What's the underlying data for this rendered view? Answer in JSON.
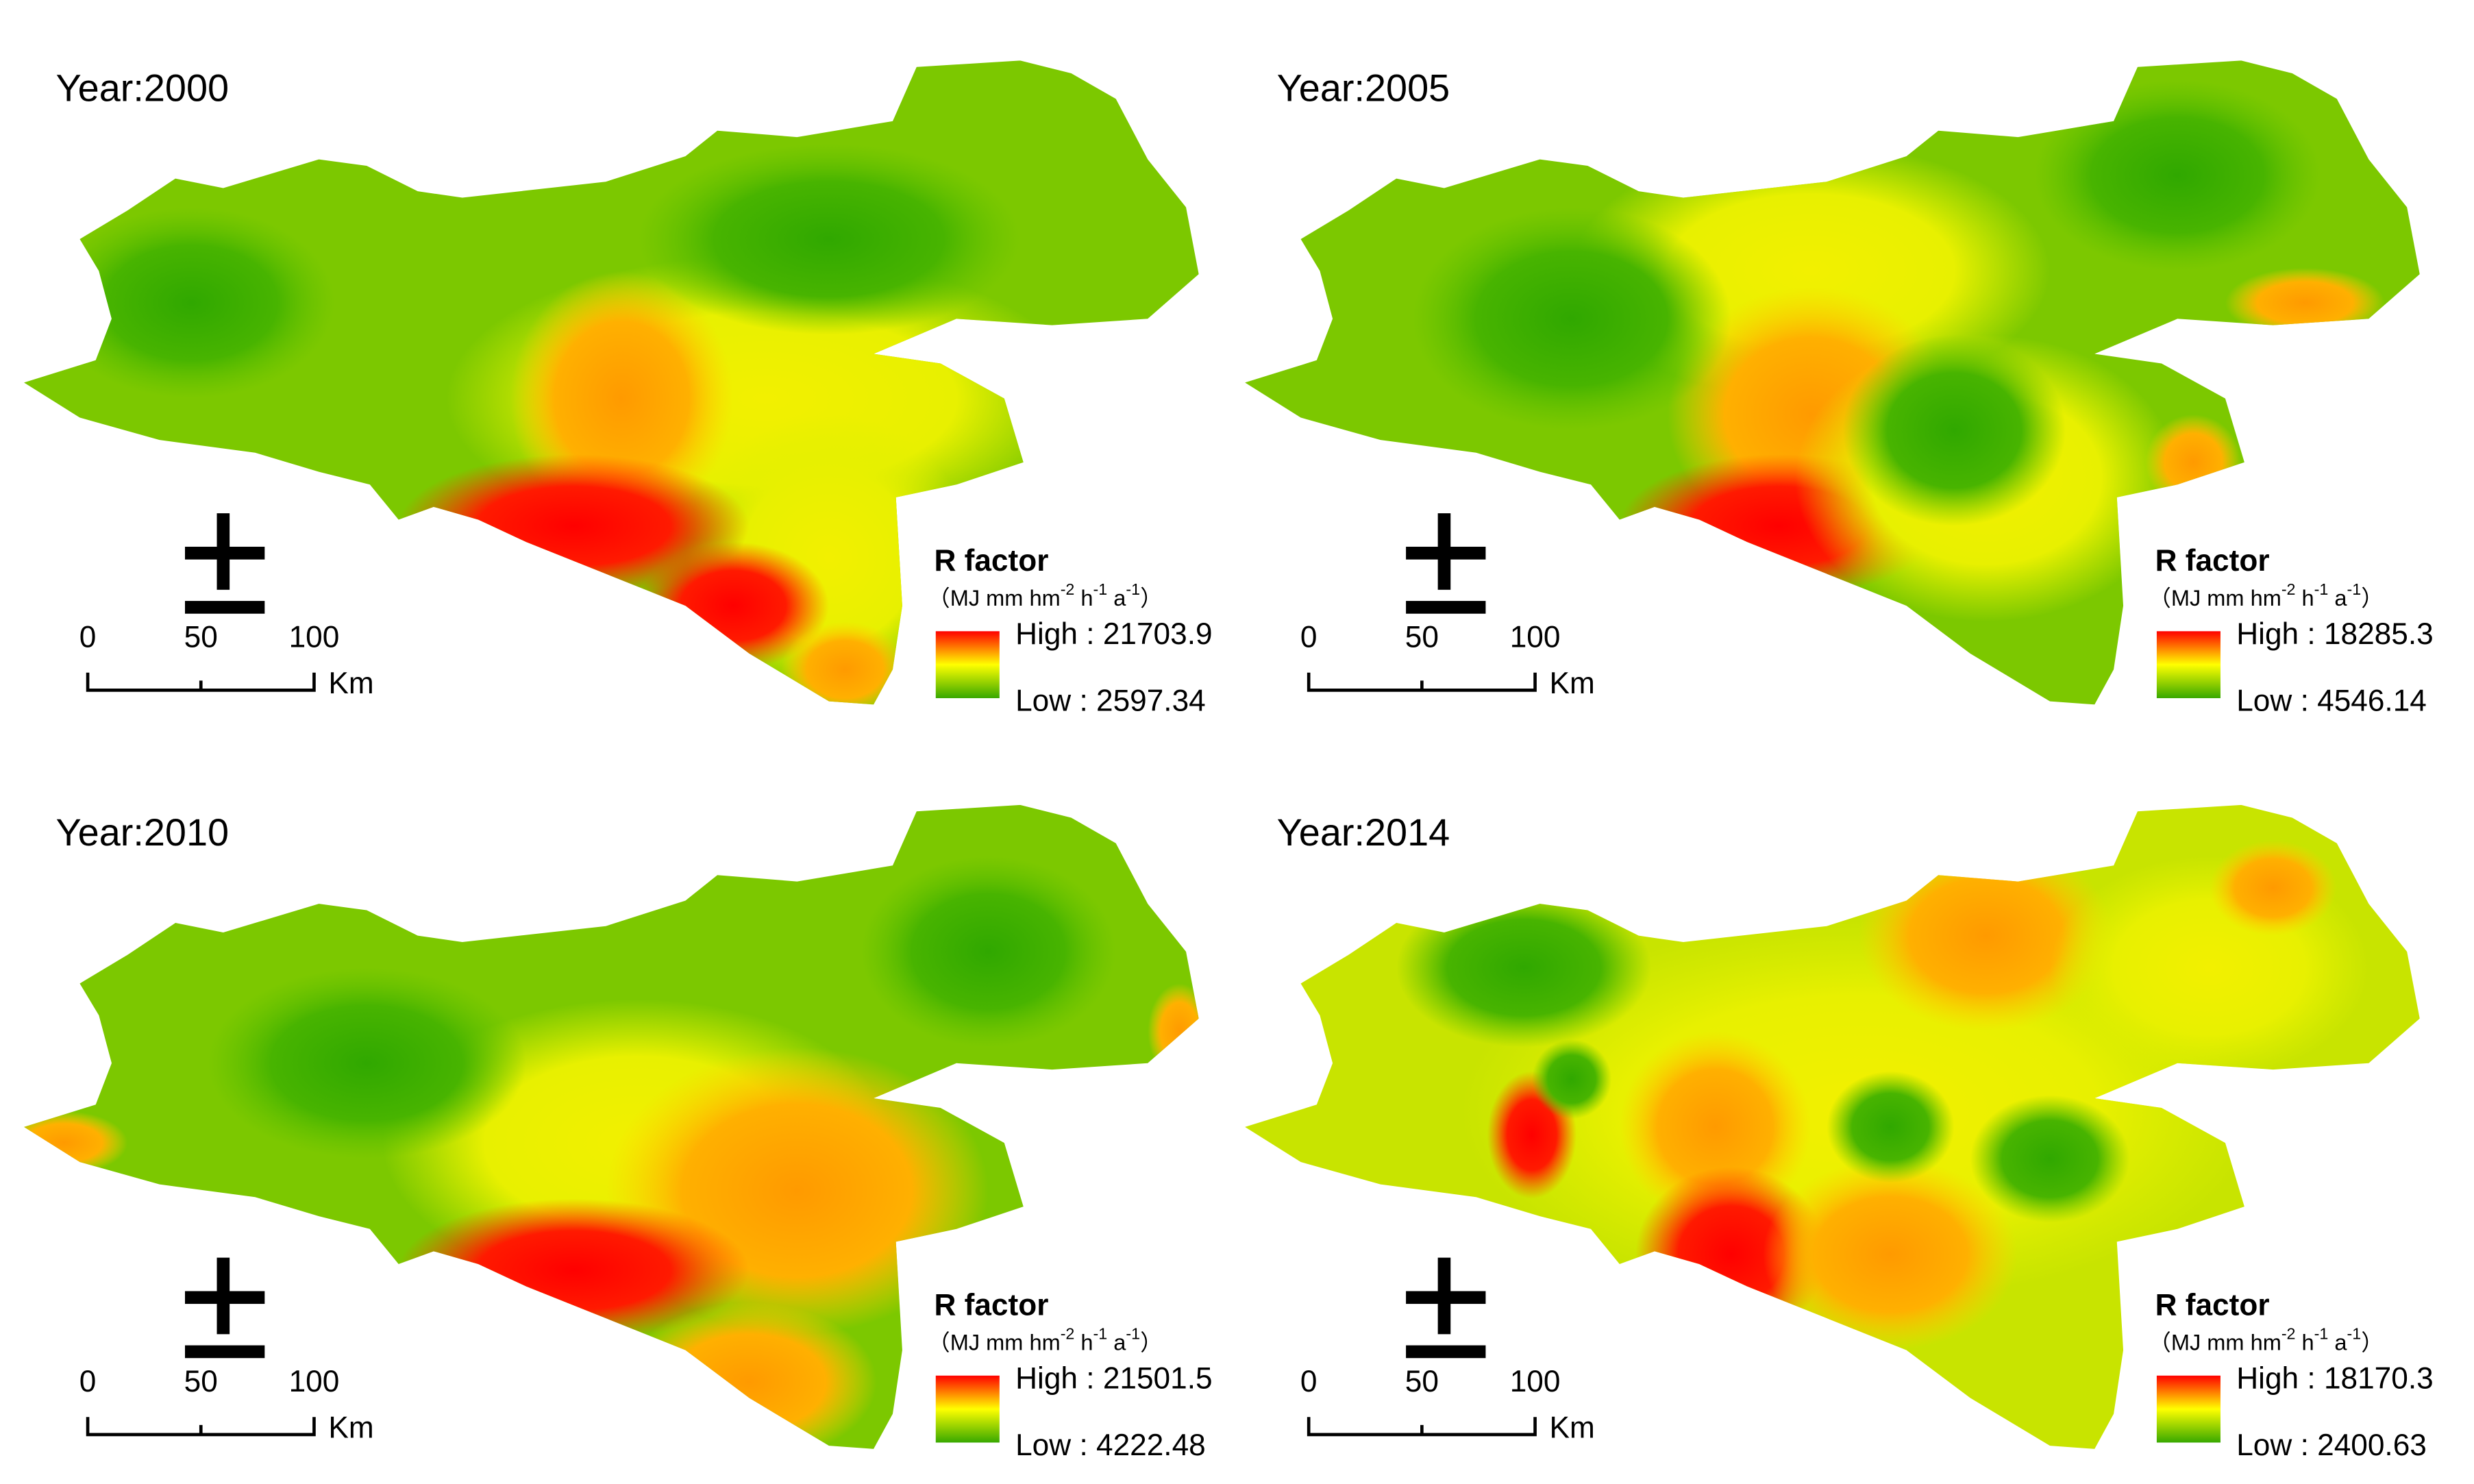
{
  "panels": [
    {
      "title": "Year:2000",
      "legend": {
        "title": "R factor",
        "unit": [
          "（MJ mm hm",
          "-2",
          " h",
          "-1",
          " a",
          "-1",
          "）"
        ],
        "high": "High : 21703.9",
        "low": "Low : 2597.34"
      },
      "scale": {
        "ticks": [
          "0",
          "50",
          "100"
        ],
        "unit": "Km"
      }
    },
    {
      "title": "Year:2005",
      "legend": {
        "title": "R factor",
        "unit": [
          "（MJ mm hm",
          "-2",
          " h",
          "-1",
          " a",
          "-1",
          "）"
        ],
        "high": "High : 18285.3",
        "low": "Low : 4546.14"
      },
      "scale": {
        "ticks": [
          "0",
          "50",
          "100"
        ],
        "unit": "Km"
      }
    },
    {
      "title": "Year:2010",
      "legend": {
        "title": "R factor",
        "unit": [
          "（MJ mm hm",
          "-2",
          " h",
          "-1",
          " a",
          "-1",
          "）"
        ],
        "high": "High : 21501.5",
        "low": "Low : 4222.48"
      },
      "scale": {
        "ticks": [
          "0",
          "50",
          "100"
        ],
        "unit": "Km"
      }
    },
    {
      "title": "Year:2014",
      "legend": {
        "title": "R factor",
        "unit": [
          "（MJ mm hm",
          "-2",
          " h",
          "-1",
          " a",
          "-1",
          "）"
        ],
        "high": "High : 18170.3",
        "low": "Low : 2400.63"
      },
      "scale": {
        "ticks": [
          "0",
          "50",
          "100"
        ],
        "unit": "Km"
      }
    }
  ]
}
